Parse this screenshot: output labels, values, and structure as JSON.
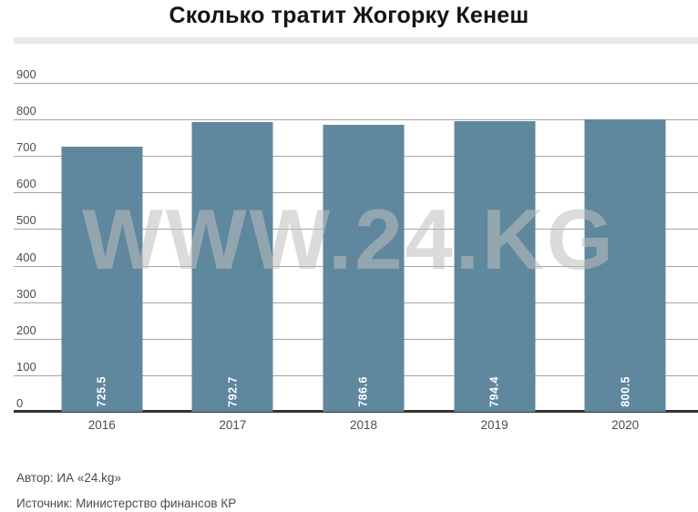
{
  "chart_data": {
    "type": "bar",
    "title": "Сколько тратит Жогорку Кенеш",
    "categories": [
      "2016",
      "2017",
      "2018",
      "2019",
      "2020"
    ],
    "values": [
      725.5,
      792.7,
      786.6,
      794.4,
      800.5
    ],
    "value_labels": [
      "725.5",
      "792.7",
      "786.6",
      "794.4",
      "800.5"
    ],
    "ylim": [
      0,
      900
    ],
    "ytick_step": 100,
    "yticks": [
      0,
      100,
      200,
      300,
      400,
      500,
      600,
      700,
      800,
      900
    ],
    "xlabel": "",
    "ylabel": "",
    "grid": true,
    "legend": "none",
    "value_label_style": "rotated-vertical-inside-bar-bottom",
    "colors": {
      "bar": "#5f889e",
      "value_label": "#ffffff",
      "gridline": "#a5a5a5",
      "baseline": "#333333",
      "tick_text": "#4c4c4c",
      "title_text": "#141414",
      "watermark_text": "#bfbfbf"
    },
    "watermark": "WWW.24.KG",
    "footer": {
      "author": "Автор: ИА «24.kg»",
      "source": "Источник: Министерство финансов КР"
    }
  }
}
